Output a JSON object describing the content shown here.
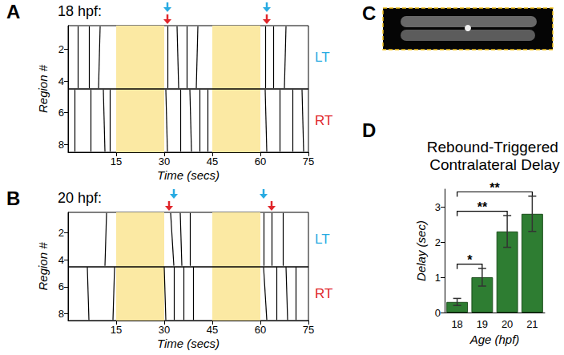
{
  "chart_data": [
    {
      "type": "raster",
      "panel": "A",
      "title": "18 hpf:",
      "xlabel": "Time (secs)",
      "ylabel": "Region #",
      "xlim": [
        0,
        75
      ],
      "xticks": [
        15,
        30,
        45,
        60,
        75
      ],
      "ylim": [
        0.5,
        8.5
      ],
      "yticks": [
        2,
        4,
        6,
        8
      ],
      "shaded": [
        [
          15,
          30
        ],
        [
          45,
          60
        ]
      ],
      "divider": 4.5,
      "groups": [
        {
          "name": "LT",
          "color": "#29abe2",
          "regions": [
            1,
            4
          ],
          "events": [
            [
              3,
              3
            ],
            [
              6.5,
              6.5
            ],
            [
              10,
              9.5
            ],
            [
              31,
              31
            ],
            [
              34,
              34.5
            ],
            [
              37,
              37
            ],
            [
              40.5,
              40
            ],
            [
              61.5,
              61.5
            ],
            [
              64,
              64
            ],
            [
              68,
              67.5
            ]
          ]
        },
        {
          "name": "RT",
          "color": "#e0262b",
          "regions": [
            5,
            8
          ],
          "events": [
            [
              2,
              2
            ],
            [
              7,
              7
            ],
            [
              11,
              11.5
            ],
            [
              13,
              13
            ],
            [
              30.5,
              31
            ],
            [
              35,
              35
            ],
            [
              38,
              38.5
            ],
            [
              41,
              41
            ],
            [
              43.5,
              43.5
            ],
            [
              61.5,
              62
            ],
            [
              66,
              66
            ],
            [
              70,
              70
            ],
            [
              73,
              73.5
            ]
          ]
        }
      ],
      "arrows": [
        {
          "x": 31,
          "group": "RT"
        },
        {
          "x": 31,
          "group": "LT"
        },
        {
          "x": 62,
          "group": "RT"
        },
        {
          "x": 62,
          "group": "LT"
        }
      ]
    },
    {
      "type": "raster",
      "panel": "B",
      "title": "20 hpf:",
      "xlabel": "Time (secs)",
      "ylabel": "Region #",
      "xlim": [
        0,
        75
      ],
      "xticks": [
        15,
        30,
        45,
        60,
        75
      ],
      "ylim": [
        0.5,
        8.5
      ],
      "yticks": [
        2,
        4,
        6,
        8
      ],
      "shaded": [
        [
          15,
          30
        ],
        [
          45,
          60
        ]
      ],
      "divider": 4.5,
      "groups": [
        {
          "name": "LT",
          "color": "#29abe2",
          "regions": [
            1,
            4
          ],
          "events": [
            [
              12,
              11.5
            ],
            [
              32,
              33
            ],
            [
              35,
              35.5
            ],
            [
              38,
              38
            ],
            [
              61,
              61
            ],
            [
              63.5,
              63.5
            ],
            [
              67,
              67
            ]
          ]
        },
        {
          "name": "RT",
          "color": "#e0262b",
          "regions": [
            5,
            8
          ],
          "events": [
            [
              6,
              6.5
            ],
            [
              14.5,
              14
            ],
            [
              30,
              30.5
            ],
            [
              33,
              33
            ],
            [
              36,
              36
            ],
            [
              39,
              39
            ],
            [
              61,
              62
            ],
            [
              65,
              65
            ],
            [
              68,
              68.5
            ],
            [
              71,
              71
            ]
          ]
        }
      ],
      "arrows": [
        {
          "x": 31.5,
          "group": "RT"
        },
        {
          "x": 33,
          "group": "LT"
        },
        {
          "x": 63.5,
          "group": "RT"
        },
        {
          "x": 61,
          "group": "LT"
        }
      ]
    },
    {
      "type": "image",
      "panel": "C"
    },
    {
      "type": "bar",
      "panel": "D",
      "title": "Rebound-Triggered Contralateral Delay",
      "xlabel": "Age (hpf)",
      "ylabel": "Delay (sec)",
      "categories": [
        "18",
        "19",
        "20",
        "21"
      ],
      "values": [
        0.3,
        1.0,
        2.3,
        2.8
      ],
      "errors": [
        0.1,
        0.25,
        0.45,
        0.5
      ],
      "color": "#2e7d32",
      "ylim": [
        0,
        3.5
      ],
      "yticks": [
        0,
        1,
        2,
        3
      ],
      "significance": [
        {
          "from": "18",
          "to": "19",
          "label": "*"
        },
        {
          "from": "18",
          "to": "20",
          "label": "**"
        },
        {
          "from": "18",
          "to": "21",
          "label": "**"
        }
      ]
    }
  ]
}
